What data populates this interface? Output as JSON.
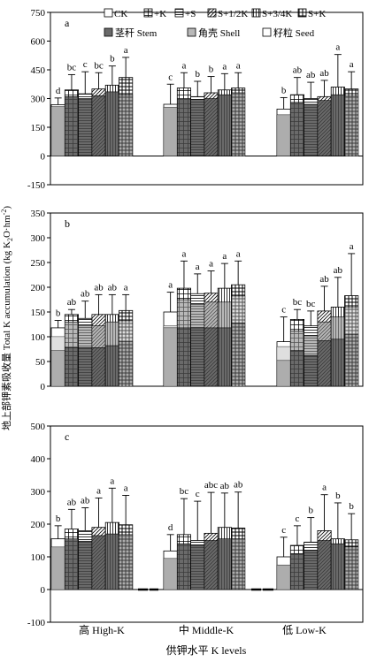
{
  "figure": {
    "y_axis_title": "地上部钾素吸收量 Total K accumulation (kg K",
    "y_axis_sub": "2",
    "y_axis_mid": "O·hm",
    "y_axis_sup": "-2",
    "y_axis_end": ")",
    "x_axis_title": "供钾水平 K levels",
    "group_labels": [
      "高 High-K",
      "中 Middle-K",
      "低 Low-K"
    ]
  },
  "legend": {
    "treatments": [
      "CK",
      "+K",
      "+S",
      "S+1/2K",
      "S+3/4K",
      "S+K"
    ],
    "parts": [
      "茎秆 Stem",
      "角壳 Shell",
      "籽粒 Seed"
    ]
  },
  "chart_data": [
    {
      "type": "bar",
      "panel_label": "a",
      "ylim": [
        -150,
        750
      ],
      "yticks": [
        -150,
        0,
        150,
        300,
        450,
        600,
        750
      ],
      "groups": [
        "高 High-K",
        "中 Middle-K",
        "低 Low-K"
      ],
      "treatments": [
        "CK",
        "+K",
        "+S",
        "S+1/2K",
        "S+3/4K",
        "S+K"
      ],
      "stem": [
        [
          258,
          310,
          300,
          315,
          335,
          320
        ],
        [
          255,
          300,
          295,
          300,
          320,
          330
        ],
        [
          215,
          280,
          270,
          290,
          320,
          315
        ]
      ],
      "total": [
        [
          268,
          345,
          325,
          350,
          370,
          410
        ],
        [
          270,
          355,
          310,
          330,
          345,
          355
        ],
        [
          245,
          320,
          300,
          310,
          360,
          350
        ]
      ],
      "error": [
        [
          35,
          80,
          115,
          85,
          100,
          105
        ],
        [
          105,
          80,
          80,
          85,
          85,
          80
        ],
        [
          60,
          90,
          85,
          85,
          170,
          90
        ]
      ],
      "letters": [
        [
          "d",
          "bc",
          "c",
          "bc",
          "b",
          "a"
        ],
        [
          "c",
          "a",
          "b",
          "b",
          "a",
          "a"
        ],
        [
          "b",
          "ab",
          "ab",
          "ab",
          "a",
          "a"
        ]
      ]
    },
    {
      "type": "bar",
      "panel_label": "b",
      "ylim": [
        0,
        350
      ],
      "yticks": [
        0,
        50,
        100,
        150,
        200,
        250,
        300,
        350
      ],
      "groups": [
        "高 High-K",
        "中 Middle-K",
        "低 Low-K"
      ],
      "treatments": [
        "CK",
        "+K",
        "+S",
        "S+1/2K",
        "S+3/4K",
        "S+K"
      ],
      "stem": [
        [
          72,
          78,
          78,
          78,
          82,
          90
        ],
        [
          118,
          118,
          118,
          118,
          118,
          128
        ],
        [
          52,
          72,
          62,
          92,
          95,
          105
        ]
      ],
      "shell": [
        [
          100,
          130,
          122,
          122,
          130,
          132
        ],
        [
          122,
          175,
          165,
          170,
          170,
          182
        ],
        [
          80,
          112,
          102,
          130,
          140,
          160
        ]
      ],
      "total": [
        [
          118,
          145,
          137,
          145,
          145,
          153
        ],
        [
          150,
          198,
          187,
          188,
          198,
          205
        ],
        [
          90,
          135,
          122,
          152,
          160,
          183
        ]
      ],
      "error": [
        [
          15,
          10,
          35,
          40,
          40,
          32
        ],
        [
          40,
          55,
          40,
          45,
          50,
          48
        ],
        [
          50,
          20,
          30,
          50,
          60,
          85
        ]
      ],
      "letters": [
        [
          "b",
          "ab",
          "ab",
          "ab",
          "ab",
          "a"
        ],
        [
          "a",
          "a",
          "a",
          "a",
          "a",
          "a"
        ],
        [
          "c",
          "bc",
          "bc",
          "ab",
          "ab",
          "a"
        ]
      ]
    },
    {
      "type": "bar",
      "panel_label": "c",
      "ylim": [
        -100,
        500
      ],
      "yticks": [
        -100,
        0,
        100,
        200,
        300,
        400,
        500
      ],
      "groups": [
        "高 High-K",
        "中 Middle-K",
        "低 Low-K"
      ],
      "treatments": [
        "CK",
        "+K",
        "+S",
        "S+1/2K",
        "S+3/4K",
        "S+K"
      ],
      "stem": [
        [
          130,
          155,
          148,
          165,
          170,
          168
        ],
        [
          95,
          140,
          135,
          150,
          155,
          155
        ],
        [
          75,
          110,
          120,
          150,
          140,
          130
        ]
      ],
      "total": [
        [
          155,
          185,
          180,
          190,
          205,
          198
        ],
        [
          118,
          168,
          150,
          172,
          190,
          188
        ],
        [
          100,
          135,
          145,
          180,
          155,
          152
        ]
      ],
      "error": [
        [
          40,
          60,
          70,
          90,
          105,
          90
        ],
        [
          50,
          110,
          120,
          125,
          105,
          110
        ],
        [
          60,
          60,
          75,
          110,
          110,
          80
        ]
      ],
      "letters": [
        [
          "b",
          "ab",
          "ab",
          "a",
          "a",
          "a"
        ],
        [
          "d",
          "bc",
          "c",
          "abc",
          "ab",
          "ab"
        ],
        [
          "c",
          "c",
          "b",
          "a",
          "b",
          "b"
        ]
      ]
    }
  ]
}
